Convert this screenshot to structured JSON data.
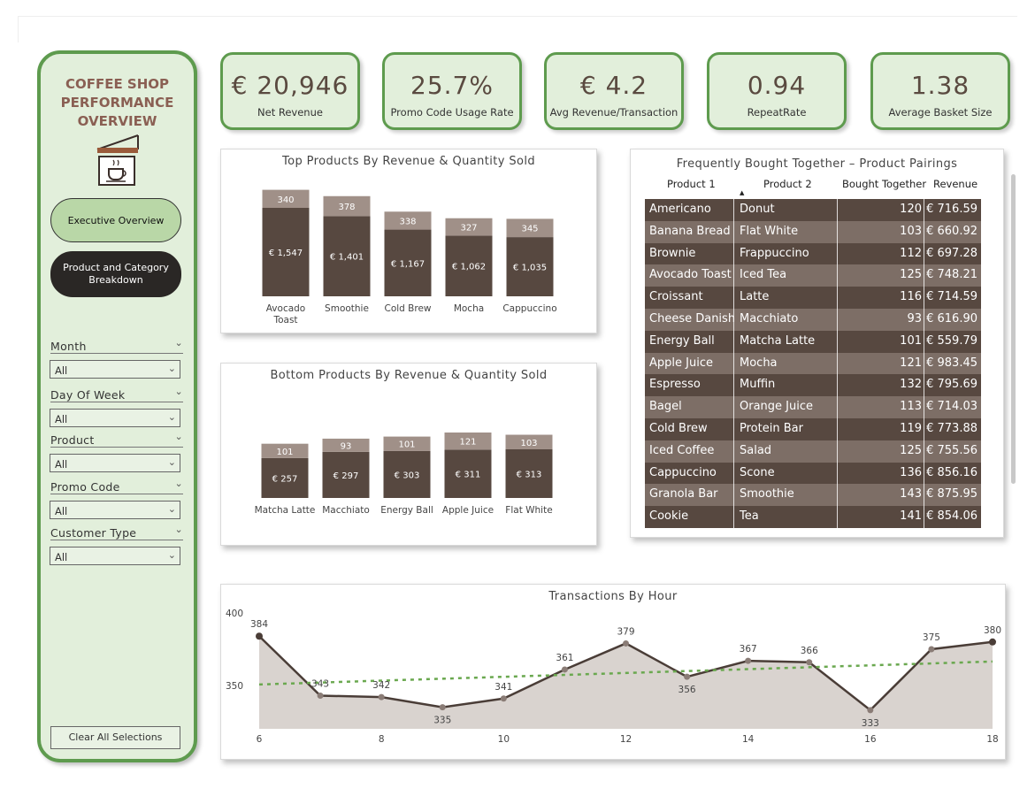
{
  "sidebar": {
    "title_lines": [
      "COFFEE SHOP",
      "PERFORMANCE",
      "OVERVIEW"
    ],
    "logo_icon": "coffee-shop-sign-icon",
    "nav": {
      "executive": "Executive Overview",
      "product": "Product and Category Breakdown"
    },
    "filters": [
      {
        "label": "Month",
        "value": "All"
      },
      {
        "label": "Day Of Week",
        "value": "All"
      },
      {
        "label": "Product",
        "value": "All"
      },
      {
        "label": "Promo Code",
        "value": "All"
      },
      {
        "label": "Customer Type",
        "value": "All"
      }
    ],
    "clear_label": "Clear All Selections"
  },
  "kpis": [
    {
      "value": "€ 20,946",
      "label": "Net Revenue"
    },
    {
      "value": "25.7%",
      "label": "Promo Code Usage Rate"
    },
    {
      "value": "€ 4.2",
      "label": "Avg Revenue/Transaction"
    },
    {
      "value": "0.94",
      "label": "RepeatRate"
    },
    {
      "value": "1.38",
      "label": "Average Basket Size"
    }
  ],
  "colors": {
    "accent_green": "#5e9b4e",
    "card_bg": "#e2efdb",
    "bar_dark": "#574840",
    "bar_light": "#a09088",
    "table_dark": "#574840",
    "table_light": "#7d6e66",
    "trend": "#6aa84f"
  },
  "pairings": {
    "title": "Frequently Bought Together – Product Pairings",
    "headers": [
      "Product 1",
      "Product 2",
      "Bought Together",
      "Revenue"
    ],
    "rows": [
      [
        "Americano",
        "Donut",
        "120",
        "€ 716.59"
      ],
      [
        "Banana Bread",
        "Flat White",
        "103",
        "€ 660.92"
      ],
      [
        "Brownie",
        "Frappuccino",
        "112",
        "€ 697.28"
      ],
      [
        "Avocado Toast",
        "Iced Tea",
        "125",
        "€ 748.21"
      ],
      [
        "Croissant",
        "Latte",
        "116",
        "€ 714.59"
      ],
      [
        "Cheese Danish",
        "Macchiato",
        "93",
        "€ 616.90"
      ],
      [
        "Energy Ball",
        "Matcha Latte",
        "101",
        "€ 559.79"
      ],
      [
        "Apple Juice",
        "Mocha",
        "121",
        "€ 983.45"
      ],
      [
        "Espresso",
        "Muffin",
        "132",
        "€ 795.69"
      ],
      [
        "Bagel",
        "Orange Juice",
        "113",
        "€ 714.03"
      ],
      [
        "Cold Brew",
        "Protein Bar",
        "119",
        "€ 773.88"
      ],
      [
        "Iced Coffee",
        "Salad",
        "125",
        "€ 755.56"
      ],
      [
        "Cappuccino",
        "Scone",
        "136",
        "€ 856.16"
      ],
      [
        "Granola Bar",
        "Smoothie",
        "143",
        "€ 875.95"
      ],
      [
        "Cookie",
        "Tea",
        "141",
        "€ 854.06"
      ]
    ]
  },
  "chart_data": [
    {
      "type": "bar",
      "title": "Top Products By Revenue & Quantity Sold",
      "categories": [
        "Avocado Toast",
        "Smoothie",
        "Cold Brew",
        "Mocha",
        "Cappuccino"
      ],
      "series": [
        {
          "name": "",
          "values": [
            1547,
            1401,
            1167,
            1062,
            1035
          ],
          "labels": [
            "€ 1,547",
            "€ 1,401",
            "€ 1,167",
            "€ 1,062",
            "€ 1,035"
          ]
        },
        {
          "name": "",
          "values": [
            340,
            378,
            338,
            327,
            345
          ]
        }
      ],
      "stacked": true
    },
    {
      "type": "bar",
      "title": "Bottom Products By Revenue & Quantity Sold",
      "categories": [
        "Matcha Latte",
        "Macchiato",
        "Energy Ball",
        "Apple Juice",
        "Flat White"
      ],
      "series": [
        {
          "name": "",
          "values": [
            257,
            297,
            303,
            311,
            313
          ],
          "labels": [
            "€ 257",
            "€ 297",
            "€ 303",
            "€ 311",
            "€ 313"
          ]
        },
        {
          "name": "",
          "values": [
            101,
            93,
            101,
            121,
            103
          ]
        }
      ],
      "stacked": true
    },
    {
      "type": "area",
      "title": "Transactions By Hour",
      "x": [
        6,
        7,
        8,
        9,
        10,
        11,
        12,
        13,
        14,
        15,
        16,
        17,
        18
      ],
      "y": [
        384,
        343,
        342,
        335,
        341,
        361,
        379,
        356,
        367,
        366,
        333,
        375,
        380
      ],
      "xticks": [
        6,
        8,
        10,
        12,
        14,
        16,
        18
      ],
      "yticks": [
        350,
        400
      ],
      "trendline": true
    }
  ]
}
